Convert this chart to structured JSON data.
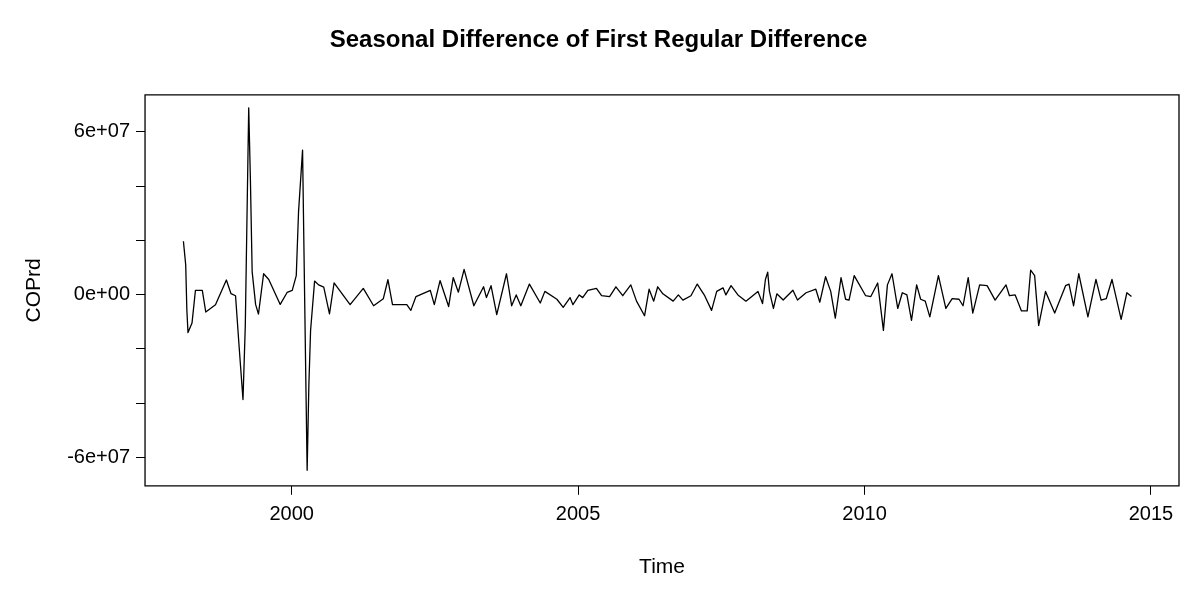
{
  "chart_data": {
    "type": "line",
    "title": "Seasonal Difference of First Regular Difference",
    "xlabel": "Time",
    "ylabel": "COPrd",
    "grid": false,
    "legend": false,
    "marker": "none",
    "line_style": "solid",
    "xlim": [
      1997.44,
      2015.49
    ],
    "xticks": [
      2000,
      2005,
      2010,
      2015
    ],
    "ylim": [
      -70500000,
      73700000
    ],
    "yticks": [
      {
        "value": 60000000,
        "label": "6e+07"
      },
      {
        "value": 40000000,
        "label": null
      },
      {
        "value": 20000000,
        "label": null
      },
      {
        "value": 0,
        "label": "0e+00"
      },
      {
        "value": -20000000,
        "label": null
      },
      {
        "value": -40000000,
        "label": null
      },
      {
        "value": -60000000,
        "label": "-6e+07"
      }
    ],
    "series": [
      {
        "color": "#000000",
        "x": [
          1998.11,
          1998.15,
          1998.17,
          1998.19,
          1998.26,
          1998.32,
          1998.44,
          1998.5,
          1998.67,
          1998.86,
          1998.94,
          1999.02,
          1999.08,
          1999.15,
          1999.19,
          1999.25,
          1999.28,
          1999.31,
          1999.37,
          1999.42,
          1999.51,
          1999.6,
          1999.8,
          1999.92,
          2000.01,
          2000.08,
          2000.12,
          2000.19,
          2000.21,
          2000.25,
          2000.27,
          2000.3,
          2000.33,
          2000.4,
          2000.47,
          2000.56,
          2000.66,
          2000.74,
          2001.02,
          2001.25,
          2001.43,
          2001.6,
          2001.68,
          2001.76,
          2002.01,
          2002.08,
          2002.17,
          2002.42,
          2002.49,
          2002.59,
          2002.74,
          2002.82,
          2002.91,
          2003.01,
          2003.18,
          2003.35,
          2003.4,
          2003.48,
          2003.58,
          2003.75,
          2003.84,
          2003.92,
          2004.0,
          2004.15,
          2004.34,
          2004.42,
          2004.63,
          2004.74,
          2004.86,
          2004.91,
          2005.02,
          2005.08,
          2005.17,
          2005.32,
          2005.41,
          2005.55,
          2005.66,
          2005.78,
          2005.92,
          2006.02,
          2006.16,
          2006.24,
          2006.32,
          2006.39,
          2006.48,
          2006.66,
          2006.75,
          2006.83,
          2006.97,
          2007.08,
          2007.21,
          2007.33,
          2007.42,
          2007.53,
          2007.58,
          2007.67,
          2007.79,
          2007.93,
          2008.14,
          2008.22,
          2008.27,
          2008.31,
          2008.34,
          2008.41,
          2008.47,
          2008.58,
          2008.75,
          2008.83,
          2008.98,
          2009.15,
          2009.22,
          2009.32,
          2009.41,
          2009.49,
          2009.59,
          2009.67,
          2009.73,
          2009.82,
          2010.02,
          2010.11,
          2010.23,
          2010.33,
          2010.4,
          2010.48,
          2010.58,
          2010.66,
          2010.74,
          2010.82,
          2010.91,
          2010.98,
          2011.06,
          2011.14,
          2011.29,
          2011.42,
          2011.53,
          2011.65,
          2011.72,
          2011.81,
          2011.89,
          2012.01,
          2012.14,
          2012.28,
          2012.47,
          2012.53,
          2012.63,
          2012.74,
          2012.84,
          2012.9,
          2012.97,
          2013.04,
          2013.16,
          2013.32,
          2013.51,
          2013.57,
          2013.65,
          2013.74,
          2013.9,
          2014.04,
          2014.13,
          2014.22,
          2014.32,
          2014.48,
          2014.58,
          2014.66
        ],
        "values": [
          19700000,
          11000000,
          -5600000,
          -14000000,
          -10500000,
          1600000,
          1600000,
          -6400000,
          -3700000,
          5400000,
          400000,
          -400000,
          -18500000,
          -38700000,
          -11700000,
          68900000,
          41900000,
          8500000,
          -3600000,
          -7200000,
          7700000,
          5600000,
          -3600000,
          800000,
          1600000,
          7000000,
          30600000,
          53300000,
          23100000,
          -35800000,
          -64800000,
          -33300000,
          -13200000,
          5000000,
          3600000,
          2800000,
          -7100000,
          4300000,
          -3700000,
          2300000,
          -4100000,
          -1500000,
          5500000,
          -3700000,
          -3700000,
          -5800000,
          -700000,
          1600000,
          -3700000,
          5200000,
          -4400000,
          6300000,
          900000,
          9300000,
          -4100000,
          2900000,
          -1100000,
          3300000,
          -7400000,
          7700000,
          -4100000,
          -100000,
          -4100000,
          3900000,
          -3100000,
          1200000,
          -1700000,
          -4700000,
          -1100000,
          -3700000,
          -100000,
          -1100000,
          1600000,
          2300000,
          -400000,
          -700000,
          2900000,
          -400000,
          3600000,
          -2400000,
          -7800000,
          2000000,
          -2400000,
          2900000,
          300000,
          -2400000,
          -100000,
          -2000000,
          -400000,
          3900000,
          -400000,
          -5800000,
          1200000,
          2500000,
          -100000,
          3300000,
          -100000,
          -2400000,
          1200000,
          -3300000,
          5600000,
          8300000,
          1200000,
          -5100000,
          300000,
          -2000000,
          1600000,
          -2000000,
          700000,
          2000000,
          -2800000,
          6600000,
          1200000,
          -8700000,
          6300000,
          -1700000,
          -2000000,
          7000000,
          -400000,
          -700000,
          4300000,
          -13200000,
          3600000,
          7700000,
          -5100000,
          700000,
          -100000,
          -9500000,
          3600000,
          -1700000,
          -2400000,
          -8200000,
          7000000,
          -5100000,
          -1500000,
          -1700000,
          -4100000,
          6300000,
          -6800000,
          3600000,
          3300000,
          -2000000,
          3600000,
          -400000,
          -100000,
          -6000000,
          -6000000,
          9000000,
          7000000,
          -11400000,
          1200000,
          -6800000,
          3300000,
          3900000,
          -4100000,
          7700000,
          -8200000,
          5600000,
          -2000000,
          -1500000,
          5600000,
          -9100000,
          700000,
          -700000
        ]
      }
    ]
  }
}
